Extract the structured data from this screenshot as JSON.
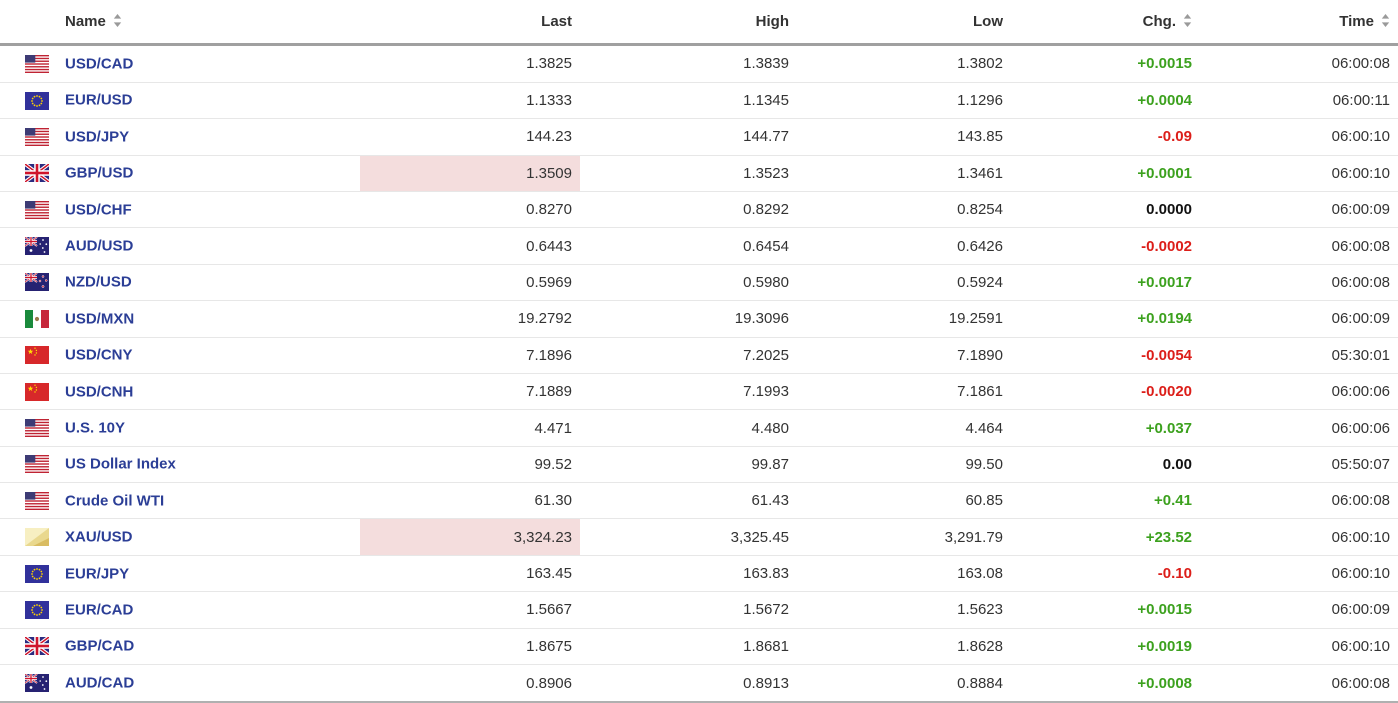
{
  "table": {
    "columns": [
      {
        "key": "name",
        "label": "Name",
        "sortable": true
      },
      {
        "key": "last",
        "label": "Last",
        "sortable": false
      },
      {
        "key": "high",
        "label": "High",
        "sortable": false
      },
      {
        "key": "low",
        "label": "Low",
        "sortable": false
      },
      {
        "key": "chg",
        "label": "Chg.",
        "sortable": true
      },
      {
        "key": "time",
        "label": "Time",
        "sortable": true
      }
    ],
    "rows": [
      {
        "flag": "us-flag",
        "name": "USD/CAD",
        "last": "1.3825",
        "high": "1.3839",
        "low": "1.3802",
        "chg": "+0.0015",
        "chg_dir": "up",
        "time": "06:00:08",
        "last_flash": false
      },
      {
        "flag": "eu-flag",
        "name": "EUR/USD",
        "last": "1.1333",
        "high": "1.1345",
        "low": "1.1296",
        "chg": "+0.0004",
        "chg_dir": "up",
        "time": "06:00:11",
        "last_flash": false
      },
      {
        "flag": "us-flag",
        "name": "USD/JPY",
        "last": "144.23",
        "high": "144.77",
        "low": "143.85",
        "chg": "-0.09",
        "chg_dir": "down",
        "time": "06:00:10",
        "last_flash": false
      },
      {
        "flag": "uk-flag",
        "name": "GBP/USD",
        "last": "1.3509",
        "high": "1.3523",
        "low": "1.3461",
        "chg": "+0.0001",
        "chg_dir": "up",
        "time": "06:00:10",
        "last_flash": true
      },
      {
        "flag": "us-flag",
        "name": "USD/CHF",
        "last": "0.8270",
        "high": "0.8292",
        "low": "0.8254",
        "chg": "0.0000",
        "chg_dir": "neutral",
        "time": "06:00:09",
        "last_flash": false
      },
      {
        "flag": "au-flag",
        "name": "AUD/USD",
        "last": "0.6443",
        "high": "0.6454",
        "low": "0.6426",
        "chg": "-0.0002",
        "chg_dir": "down",
        "time": "06:00:08",
        "last_flash": false
      },
      {
        "flag": "nz-flag",
        "name": "NZD/USD",
        "last": "0.5969",
        "high": "0.5980",
        "low": "0.5924",
        "chg": "+0.0017",
        "chg_dir": "up",
        "time": "06:00:08",
        "last_flash": false
      },
      {
        "flag": "mx-flag",
        "name": "USD/MXN",
        "last": "19.2792",
        "high": "19.3096",
        "low": "19.2591",
        "chg": "+0.0194",
        "chg_dir": "up",
        "time": "06:00:09",
        "last_flash": false
      },
      {
        "flag": "cn-flag",
        "name": "USD/CNY",
        "last": "7.1896",
        "high": "7.2025",
        "low": "7.1890",
        "chg": "-0.0054",
        "chg_dir": "down",
        "time": "05:30:01",
        "last_flash": false
      },
      {
        "flag": "cn-flag",
        "name": "USD/CNH",
        "last": "7.1889",
        "high": "7.1993",
        "low": "7.1861",
        "chg": "-0.0020",
        "chg_dir": "down",
        "time": "06:00:06",
        "last_flash": false
      },
      {
        "flag": "us-flag",
        "name": "U.S. 10Y",
        "last": "4.471",
        "high": "4.480",
        "low": "4.464",
        "chg": "+0.037",
        "chg_dir": "up",
        "time": "06:00:06",
        "last_flash": false
      },
      {
        "flag": "us-flag",
        "name": "US Dollar Index",
        "last": "99.52",
        "high": "99.87",
        "low": "99.50",
        "chg": "0.00",
        "chg_dir": "neutral",
        "time": "05:50:07",
        "last_flash": false
      },
      {
        "flag": "us-flag",
        "name": "Crude Oil WTI",
        "last": "61.30",
        "high": "61.43",
        "low": "60.85",
        "chg": "+0.41",
        "chg_dir": "up",
        "time": "06:00:08",
        "last_flash": false
      },
      {
        "flag": "gold-bar",
        "name": "XAU/USD",
        "last": "3,324.23",
        "high": "3,325.45",
        "low": "3,291.79",
        "chg": "+23.52",
        "chg_dir": "up",
        "time": "06:00:10",
        "last_flash": true
      },
      {
        "flag": "eu-flag",
        "name": "EUR/JPY",
        "last": "163.45",
        "high": "163.83",
        "low": "163.08",
        "chg": "-0.10",
        "chg_dir": "down",
        "time": "06:00:10",
        "last_flash": false
      },
      {
        "flag": "eu-flag",
        "name": "EUR/CAD",
        "last": "1.5667",
        "high": "1.5672",
        "low": "1.5623",
        "chg": "+0.0015",
        "chg_dir": "up",
        "time": "06:00:09",
        "last_flash": false
      },
      {
        "flag": "uk-flag",
        "name": "GBP/CAD",
        "last": "1.8675",
        "high": "1.8681",
        "low": "1.8628",
        "chg": "+0.0019",
        "chg_dir": "up",
        "time": "06:00:10",
        "last_flash": false
      },
      {
        "flag": "au-flag",
        "name": "AUD/CAD",
        "last": "0.8906",
        "high": "0.8913",
        "low": "0.8884",
        "chg": "+0.0008",
        "chg_dir": "up",
        "time": "06:00:08",
        "last_flash": false
      }
    ]
  },
  "colors": {
    "positive": "#3ca11e",
    "negative": "#dc1e19",
    "neutral": "#111111",
    "flash_bg": "#f4dddd",
    "link": "#2b3e96",
    "header_text": "#333333",
    "value_text": "#333333"
  },
  "icons": {
    "sort": "sort-arrows-icon"
  }
}
